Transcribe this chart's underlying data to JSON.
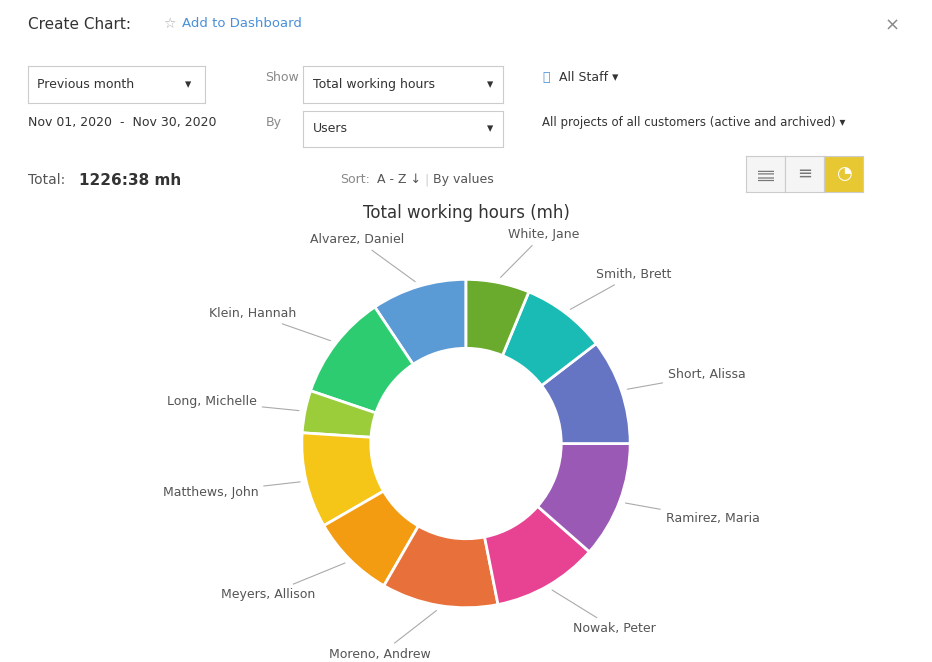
{
  "title": "Total working hours (mh)",
  "background_color": "#ffffff",
  "members": [
    "Alvarez, Daniel",
    "Klein, Hannah",
    "Long, Michelle",
    "Matthews, John",
    "Meyers, Allison",
    "Moreno, Andrew",
    "Nowak, Peter",
    "Ramirez, Maria",
    "Short, Alissa",
    "Smith, Brett",
    "White, Jane"
  ],
  "values": [
    9,
    10,
    4,
    9,
    8,
    11,
    10,
    11,
    10,
    8,
    6
  ],
  "colors": [
    "#5B9BD5",
    "#2ECC71",
    "#9BCC3A",
    "#F5C518",
    "#F39C12",
    "#E8703A",
    "#E84393",
    "#9B59B6",
    "#6674C4",
    "#1ABBB4",
    "#6AAB2E"
  ],
  "label_fontsize": 9,
  "label_color": "#555555",
  "ui": {
    "header_title": "Create Chart:",
    "add_dashboard": "Add to Dashboard",
    "period_dropdown": "Previous month",
    "date_range": "Nov 01, 2020  -  Nov 30, 2020",
    "show_label": "Show",
    "show_value": "Total working hours",
    "by_label": "By",
    "by_value": "Users",
    "all_staff": "All Staff",
    "projects": "All projects of all customers (active and archived)",
    "total_label": "Total:",
    "total_value": "1226:38 mh",
    "sort_label": "Sort:",
    "sort_az": "A - Z ↓",
    "sort_by": "By values"
  }
}
